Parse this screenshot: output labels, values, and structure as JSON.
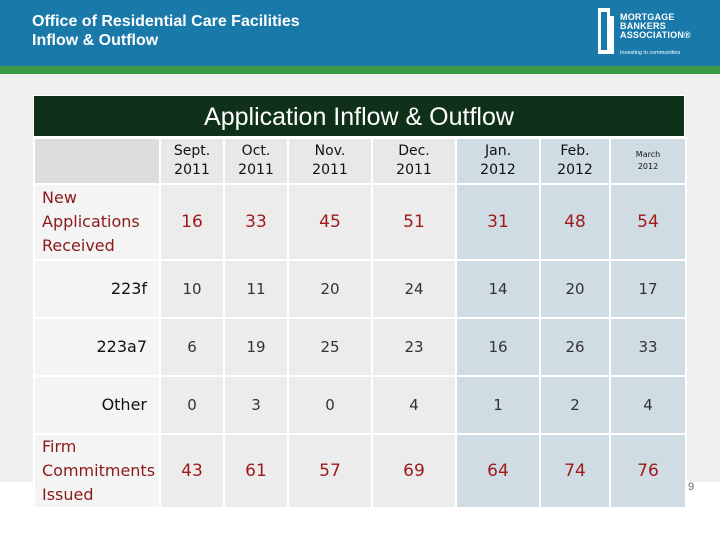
{
  "header": {
    "title_line1": "Office of Residential Care Facilities",
    "title_line2": "Inflow & Outflow",
    "logo_line1": "MORTGAGE",
    "logo_line2": "BANKERS",
    "logo_line3": "ASSOCIATION®",
    "logo_tagline": "Investing in communities"
  },
  "table": {
    "title": "Application Inflow & Outflow",
    "columns": [
      {
        "line1": "Sept.",
        "line2": "2011"
      },
      {
        "line1": "Oct.",
        "line2": "2011"
      },
      {
        "line1": "Nov.",
        "line2": "2011"
      },
      {
        "line1": "Dec.",
        "line2": "2011"
      },
      {
        "line1": "Jan.",
        "line2": "2012"
      },
      {
        "line1": "Feb.",
        "line2": "2012"
      },
      {
        "line1": "March",
        "line2": "2012"
      }
    ],
    "rows": [
      {
        "label_lines": [
          "New",
          "Applications",
          "Received"
        ],
        "values": [
          "16",
          "33",
          "45",
          "51",
          "31",
          "48",
          "54"
        ]
      },
      {
        "label": "223f",
        "values": [
          "10",
          "11",
          "20",
          "24",
          "14",
          "20",
          "17"
        ]
      },
      {
        "label": "223a7",
        "values": [
          "6",
          "19",
          "25",
          "23",
          "16",
          "26",
          "33"
        ]
      },
      {
        "label": "Other",
        "values": [
          "0",
          "3",
          "0",
          "4",
          "1",
          "2",
          "4"
        ]
      },
      {
        "label_lines": [
          "Firm",
          "Commitments",
          "Issued"
        ],
        "values": [
          "43",
          "61",
          "57",
          "69",
          "64",
          "74",
          "76"
        ]
      }
    ]
  },
  "page_number": "9"
}
